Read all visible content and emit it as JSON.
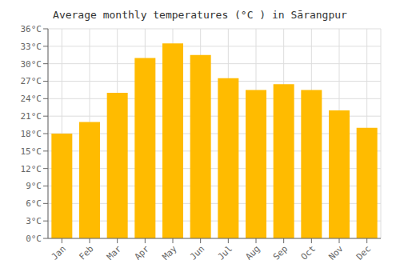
{
  "chart_data": {
    "type": "bar",
    "title": "Average monthly temperatures (°C ) in Sārangpur",
    "categories": [
      "Jan",
      "Feb",
      "Mar",
      "Apr",
      "May",
      "Jun",
      "Jul",
      "Aug",
      "Sep",
      "Oct",
      "Nov",
      "Dec"
    ],
    "values": [
      18,
      20,
      25,
      31,
      33.5,
      31.5,
      27.5,
      25.5,
      26.5,
      25.5,
      22,
      19
    ],
    "color": "#FFBB00",
    "ylim": [
      0,
      36
    ],
    "yticks": [
      {
        "value": 0,
        "label": "0°C"
      },
      {
        "value": 3,
        "label": "3°C"
      },
      {
        "value": 6,
        "label": "6°C"
      },
      {
        "value": 9,
        "label": "9°C"
      },
      {
        "value": 12,
        "label": "12°C"
      },
      {
        "value": 15,
        "label": "15°C"
      },
      {
        "value": 18,
        "label": "18°C"
      },
      {
        "value": 21,
        "label": "21°C"
      },
      {
        "value": 24,
        "label": "24°C"
      },
      {
        "value": 27,
        "label": "27°C"
      },
      {
        "value": 30,
        "label": "30°C"
      },
      {
        "value": 33,
        "label": "33°C"
      },
      {
        "value": 36,
        "label": "36°C"
      }
    ],
    "grid": true
  }
}
